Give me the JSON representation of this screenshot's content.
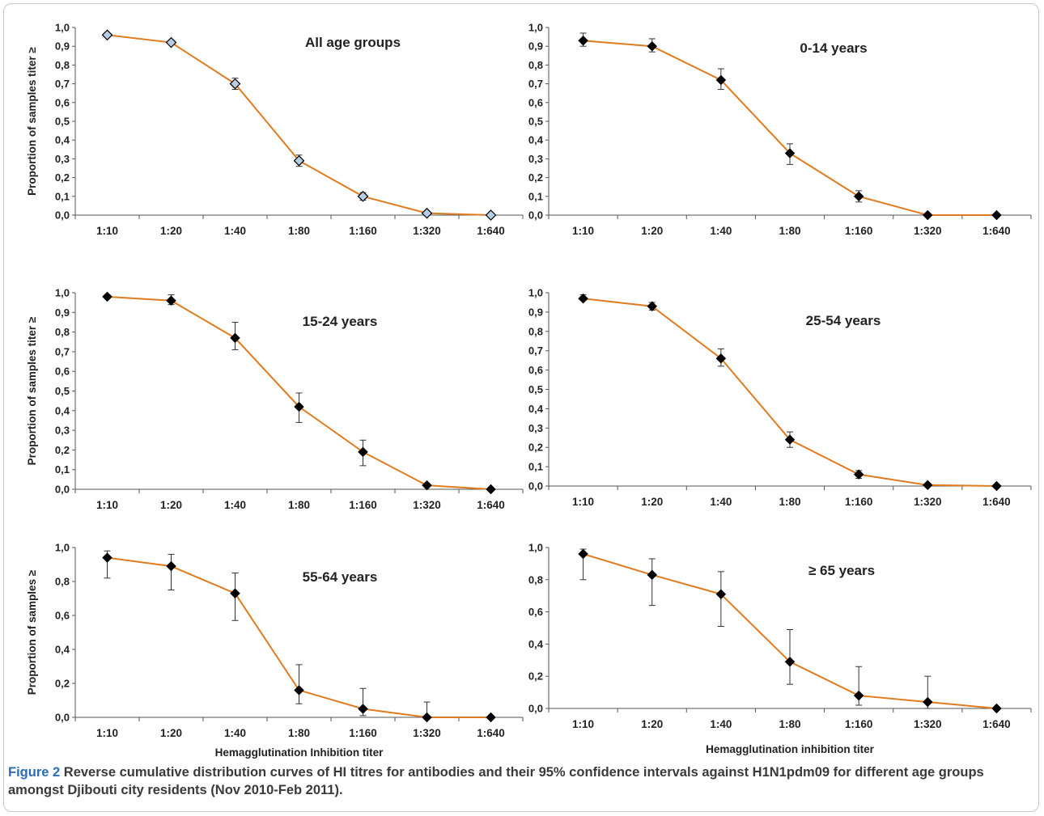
{
  "figure": {
    "label": "Figure 2",
    "caption": "Reverse cumulative distribution curves of HI titres for antibodies and their 95% confidence intervals against H1N1pdm09 for different age groups amongst Djibouti city residents (Nov 2010-Feb 2011)."
  },
  "colors": {
    "line": "#e07b1f",
    "marker": "#000000",
    "marker_all_groups": "#b7cde6",
    "axis": "#555555",
    "text": "#222222"
  },
  "chart_data": [
    {
      "type": "line",
      "title": "All age groups",
      "ylabel": "Proportion of samples titer ≥",
      "xlabel": "",
      "categories": [
        "1:10",
        "1:20",
        "1:40",
        "1:80",
        "1:160",
        "1:320",
        "1:640"
      ],
      "yticks": [
        "0,0",
        "0,1",
        "0,2",
        "0,3",
        "0,4",
        "0,5",
        "0,6",
        "0,7",
        "0,8",
        "0,9",
        "1,0"
      ],
      "ylim": [
        0,
        1
      ],
      "series": [
        {
          "values": [
            0.96,
            0.92,
            0.7,
            0.29,
            0.1,
            0.01,
            0.0
          ],
          "ci_low": [
            0.95,
            0.91,
            0.67,
            0.26,
            0.08,
            0.005,
            0.0
          ],
          "ci_high": [
            0.97,
            0.93,
            0.73,
            0.32,
            0.12,
            0.015,
            0.0
          ]
        }
      ]
    },
    {
      "type": "line",
      "title": "0-14 years",
      "ylabel": "",
      "xlabel": "",
      "categories": [
        "1:10",
        "1:20",
        "1:40",
        "1:80",
        "1:160",
        "1:320",
        "1:640"
      ],
      "yticks": [
        "0,0",
        "0,1",
        "0,2",
        "0,3",
        "0,4",
        "0,5",
        "0,6",
        "0,7",
        "0,8",
        "0,9",
        "1,0"
      ],
      "ylim": [
        0,
        1
      ],
      "series": [
        {
          "values": [
            0.93,
            0.9,
            0.72,
            0.33,
            0.1,
            0.0,
            0.0
          ],
          "ci_low": [
            0.9,
            0.87,
            0.67,
            0.27,
            0.07,
            0.0,
            0.0
          ],
          "ci_high": [
            0.97,
            0.94,
            0.78,
            0.38,
            0.13,
            0.0,
            0.0
          ]
        }
      ]
    },
    {
      "type": "line",
      "title": "15-24 years",
      "ylabel": "Proportion of samples titer ≥",
      "xlabel": "",
      "categories": [
        "1:10",
        "1:20",
        "1:40",
        "1:80",
        "1:160",
        "1:320",
        "1:640"
      ],
      "yticks": [
        "0,0",
        "0,1",
        "0,2",
        "0,3",
        "0,4",
        "0,5",
        "0,6",
        "0,7",
        "0,8",
        "0,9",
        "1,0"
      ],
      "ylim": [
        0,
        1
      ],
      "series": [
        {
          "values": [
            0.98,
            0.96,
            0.77,
            0.42,
            0.19,
            0.02,
            0.0
          ],
          "ci_low": [
            0.98,
            0.94,
            0.71,
            0.34,
            0.12,
            0.015,
            0.0
          ],
          "ci_high": [
            0.99,
            0.99,
            0.85,
            0.49,
            0.25,
            0.03,
            0.0
          ]
        }
      ]
    },
    {
      "type": "line",
      "title": "25-54 years",
      "ylabel": "",
      "xlabel": "",
      "categories": [
        "1:10",
        "1:20",
        "1:40",
        "1:80",
        "1:160",
        "1:320",
        "1:640"
      ],
      "yticks": [
        "0,0",
        "0,1",
        "0,2",
        "0,3",
        "0,4",
        "0,5",
        "0,6",
        "0,7",
        "0,8",
        "0,9",
        "1,0"
      ],
      "ylim": [
        0,
        1
      ],
      "series": [
        {
          "values": [
            0.97,
            0.93,
            0.66,
            0.24,
            0.06,
            0.005,
            0.0
          ],
          "ci_low": [
            0.96,
            0.91,
            0.62,
            0.2,
            0.04,
            0.003,
            0.0
          ],
          "ci_high": [
            0.99,
            0.95,
            0.71,
            0.28,
            0.08,
            0.01,
            0.0
          ]
        }
      ]
    },
    {
      "type": "line",
      "title": "55-64 years",
      "ylabel": "Proportion of samples ≥",
      "xlabel": "Hemagglutination Inhibition titer",
      "categories": [
        "1:10",
        "1:20",
        "1:40",
        "1:80",
        "1:160",
        "1:320",
        "1:640"
      ],
      "yticks": [
        "0,0",
        "0,2",
        "0,4",
        "0,6",
        "0,8",
        "1,0"
      ],
      "ylim": [
        0,
        1
      ],
      "series": [
        {
          "values": [
            0.94,
            0.89,
            0.73,
            0.16,
            0.05,
            0.0,
            0.0
          ],
          "ci_low": [
            0.82,
            0.75,
            0.57,
            0.08,
            0.01,
            0.0,
            0.0
          ],
          "ci_high": [
            0.98,
            0.96,
            0.85,
            0.31,
            0.17,
            0.09,
            0.0
          ]
        }
      ]
    },
    {
      "type": "line",
      "title": "≥ 65 years",
      "ylabel": "",
      "xlabel": "Hemagglutination inhibition titer",
      "categories": [
        "1:10",
        "1:20",
        "1:40",
        "1:80",
        "1:160",
        "1:320",
        "1:640"
      ],
      "yticks": [
        "0,0",
        "0,2",
        "0,4",
        "0,6",
        "0,8",
        "1,0"
      ],
      "ylim": [
        0,
        1
      ],
      "series": [
        {
          "values": [
            0.96,
            0.83,
            0.71,
            0.29,
            0.08,
            0.04,
            0.0
          ],
          "ci_low": [
            0.8,
            0.64,
            0.51,
            0.15,
            0.02,
            0.0,
            0.0
          ],
          "ci_high": [
            0.99,
            0.93,
            0.85,
            0.49,
            0.26,
            0.2,
            0.0
          ]
        }
      ]
    }
  ]
}
